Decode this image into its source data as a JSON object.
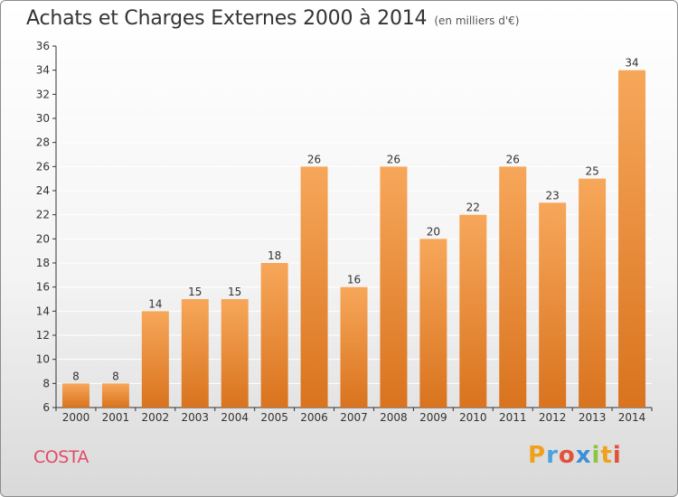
{
  "header": {
    "title": "Achats et Charges Externes 2000 à 2014",
    "subtitle": "(en milliers d'€)"
  },
  "footer": {
    "commune": "COSTA",
    "logo": {
      "letters": [
        "P",
        "r",
        "o",
        "x",
        "i",
        "t",
        "i"
      ],
      "colors": [
        "#f0a11c",
        "#4aa3df",
        "#e2513a",
        "#3c8fd8",
        "#8cc63f",
        "#f0a11c",
        "#e2513a"
      ]
    }
  },
  "colors": {
    "bar_light": "#f7a75a",
    "bar_dark": "#d9731e",
    "axis": "#333333",
    "grid": "#ffffff"
  },
  "chart_data": {
    "type": "bar",
    "categories": [
      "2000",
      "2001",
      "2002",
      "2003",
      "2004",
      "2005",
      "2006",
      "2007",
      "2008",
      "2009",
      "2010",
      "2011",
      "2012",
      "2013",
      "2014"
    ],
    "values": [
      8,
      8,
      14,
      15,
      15,
      18,
      26,
      16,
      26,
      20,
      22,
      26,
      23,
      25,
      34
    ],
    "title": "Achats et Charges Externes 2000 à 2014",
    "ylim": [
      6,
      36
    ],
    "yticks": [
      6,
      8,
      10,
      12,
      14,
      16,
      18,
      20,
      22,
      24,
      26,
      28,
      30,
      32,
      34,
      36
    ],
    "grid": true,
    "data_labels": true
  }
}
